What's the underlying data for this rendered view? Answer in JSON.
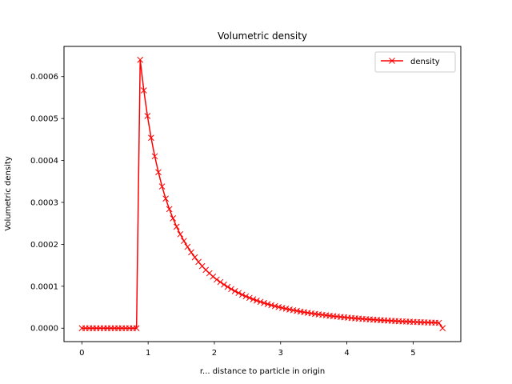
{
  "chart_data": {
    "type": "line",
    "title": "Volumetric density",
    "xlabel": "r... distance to particle in origin",
    "ylabel": "Volumetric density",
    "xlim": [
      -0.27,
      5.72
    ],
    "ylim": [
      -3.2e-05,
      0.000672
    ],
    "xticks": [
      0,
      1,
      2,
      3,
      4,
      5
    ],
    "xtick_labels": [
      "0",
      "1",
      "2",
      "3",
      "4",
      "5"
    ],
    "yticks": [
      0,
      0.0001,
      0.0002,
      0.0003,
      0.0004,
      0.0005,
      0.0006
    ],
    "ytick_labels": [
      "0.0000",
      "0.0001",
      "0.0002",
      "0.0003",
      "0.0004",
      "0.0005",
      "0.0006"
    ],
    "grid": false,
    "legend_position": "upper right",
    "colors": {
      "density": "#ff0000"
    },
    "marker": "x",
    "series": [
      {
        "name": "density",
        "peak_x": 0.88,
        "peak_y": 0.00064,
        "x": [
          0,
          0.055,
          0.11,
          0.165,
          0.22,
          0.275,
          0.33,
          0.385,
          0.44,
          0.495,
          0.55,
          0.605,
          0.66,
          0.715,
          0.77,
          0.825,
          0.88,
          0.935,
          0.99,
          1.045,
          1.1,
          1.155,
          1.21,
          1.265,
          1.32,
          1.375,
          1.43,
          1.485,
          1.54,
          1.595,
          1.65,
          1.705,
          1.76,
          1.815,
          1.87,
          1.925,
          1.98,
          2.035,
          2.09,
          2.145,
          2.2,
          2.255,
          2.31,
          2.365,
          2.42,
          2.475,
          2.53,
          2.585,
          2.64,
          2.695,
          2.75,
          2.805,
          2.86,
          2.915,
          2.97,
          3.025,
          3.08,
          3.135,
          3.19,
          3.245,
          3.3,
          3.355,
          3.41,
          3.465,
          3.52,
          3.575,
          3.63,
          3.685,
          3.74,
          3.795,
          3.85,
          3.905,
          3.96,
          4.015,
          4.07,
          4.125,
          4.18,
          4.235,
          4.29,
          4.345,
          4.4,
          4.455,
          4.51,
          4.565,
          4.62,
          4.675,
          4.73,
          4.785,
          4.84,
          4.895,
          4.95,
          5.005,
          5.06,
          5.115,
          5.17,
          5.225,
          5.28,
          5.335,
          5.39,
          5.445
        ],
        "y": [
          0,
          0,
          0,
          0,
          0,
          0,
          0,
          0,
          0,
          0,
          0,
          0,
          0,
          0,
          0,
          0,
          0.00064,
          0.000567,
          0.000506,
          0.000454,
          0.00041,
          0.000372,
          0.000338,
          0.000309,
          0.000284,
          0.000262,
          0.000242,
          0.000224,
          0.000208,
          0.000194,
          0.000181,
          0.000169,
          0.000158,
          0.000148,
          0.000139,
          0.000131,
          0.000123,
          0.000116,
          0.00011,
          0.000104,
          9.85e-05,
          9.33e-05,
          8.85e-05,
          8.4e-05,
          7.98e-05,
          7.59e-05,
          7.23e-05,
          6.89e-05,
          6.58e-05,
          6.28e-05,
          6e-05,
          5.74e-05,
          5.49e-05,
          5.26e-05,
          5.04e-05,
          4.84e-05,
          4.64e-05,
          4.46e-05,
          4.28e-05,
          4.12e-05,
          3.96e-05,
          3.81e-05,
          3.67e-05,
          3.54e-05,
          3.41e-05,
          3.29e-05,
          3.18e-05,
          3.07e-05,
          2.96e-05,
          2.86e-05,
          2.77e-05,
          2.68e-05,
          2.59e-05,
          2.51e-05,
          2.43e-05,
          2.36e-05,
          2.28e-05,
          2.21e-05,
          2.15e-05,
          2.09e-05,
          2.03e-05,
          1.97e-05,
          1.91e-05,
          1.86e-05,
          1.81e-05,
          1.76e-05,
          1.71e-05,
          1.67e-05,
          1.62e-05,
          1.58e-05,
          1.54e-05,
          1.5e-05,
          1.46e-05,
          1.43e-05,
          1.39e-05,
          1.36e-05,
          1.33e-05,
          1.3e-05,
          1.27e-05,
          0
        ]
      }
    ]
  }
}
